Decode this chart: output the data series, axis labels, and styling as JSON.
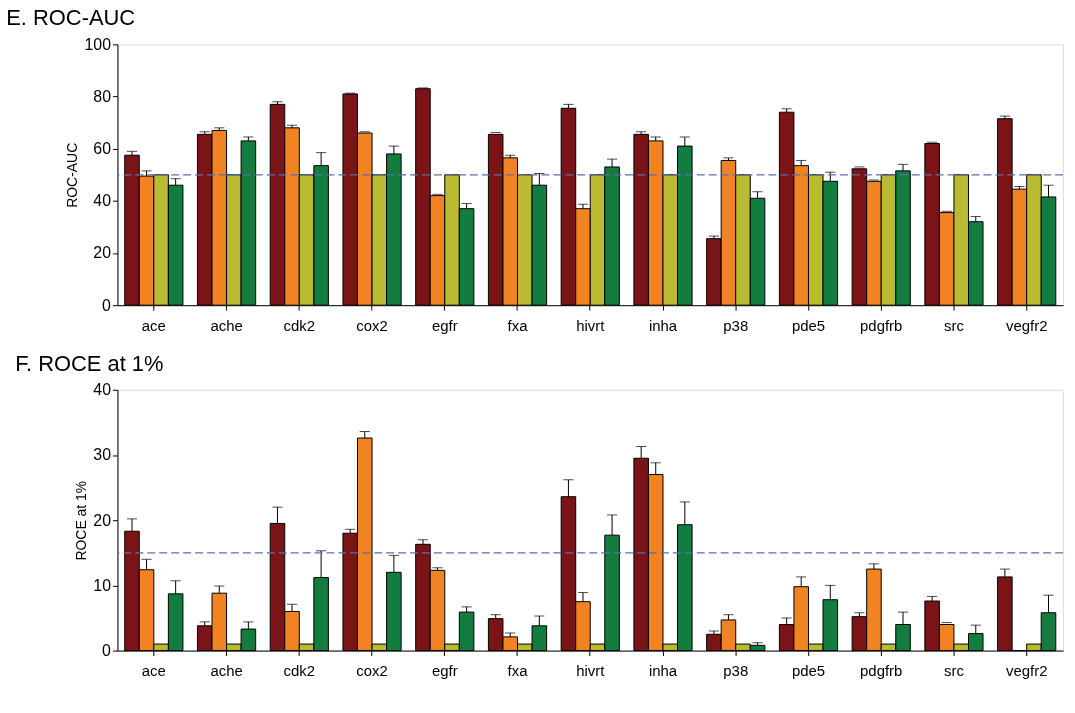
{
  "chart_data": [
    {
      "type": "bar",
      "title": "E.  ROC-AUC",
      "ylabel": "ROC-AUC",
      "categories": [
        "ace",
        "ache",
        "cdk2",
        "cox2",
        "egfr",
        "fxa",
        "hivrt",
        "inha",
        "p38",
        "pde5",
        "pdgfrb",
        "src",
        "vegfr2"
      ],
      "ylim": [
        0,
        100
      ],
      "yticks": [
        0,
        20,
        40,
        60,
        80,
        100
      ],
      "grid": false,
      "legend": false,
      "ref_lines": [
        {
          "axis": "y",
          "value": 50,
          "color": "#5a6fb0",
          "line_style": "dashed"
        }
      ],
      "series": [
        {
          "color": "#7b1416",
          "values": [
            57.5,
            65.5,
            77,
            81,
            83,
            65.5,
            75.5,
            65.5,
            25.5,
            74,
            52.3,
            62,
            71.5
          ],
          "errors": [
            [
              57.5,
              59
            ],
            [
              65.5,
              66.5
            ],
            [
              77,
              78
            ],
            [
              81,
              81.3
            ],
            [
              83,
              83.3
            ],
            [
              65.5,
              66.2
            ],
            [
              75.5,
              77
            ],
            [
              65.5,
              66.5
            ],
            [
              25.5,
              26.5
            ],
            [
              74,
              75.3
            ],
            [
              52.3,
              53
            ],
            [
              62,
              62.5
            ],
            [
              71.5,
              72.5
            ]
          ]
        },
        {
          "color": "#f28322",
          "values": [
            49.5,
            67,
            68,
            66,
            42,
            56.5,
            37,
            63,
            55.5,
            53.5,
            47.5,
            35.5,
            44.5
          ],
          "errors": [
            [
              49.5,
              51.5
            ],
            [
              67,
              68
            ],
            [
              68,
              69
            ],
            [
              66,
              66.5
            ],
            [
              42,
              42.5
            ],
            [
              56.5,
              57.5
            ],
            [
              37,
              38.7
            ],
            [
              63,
              64.5
            ],
            [
              55.5,
              56.5
            ],
            [
              53.5,
              55.5
            ],
            [
              47.5,
              48
            ],
            [
              35.5,
              36
            ],
            [
              44.5,
              45.5
            ]
          ]
        },
        {
          "color": "#bbbb33",
          "values": [
            50,
            50,
            50,
            50,
            50,
            50,
            50,
            50,
            50,
            50,
            50,
            50,
            50
          ]
        },
        {
          "color": "#137d3f",
          "values": [
            46,
            63,
            53.5,
            58,
            37,
            46,
            53,
            61,
            41,
            47.5,
            51.5,
            32,
            41.5
          ],
          "errors": [
            [
              46,
              48.5
            ],
            [
              63,
              64.5
            ],
            [
              53.5,
              58.5
            ],
            [
              58,
              61
            ],
            [
              37,
              39
            ],
            [
              46,
              50.5
            ],
            [
              53,
              56
            ],
            [
              61,
              64.5
            ],
            [
              41,
              43.5
            ],
            [
              47.5,
              51
            ],
            [
              51.5,
              54
            ],
            [
              32,
              34
            ],
            [
              41.5,
              46
            ]
          ]
        }
      ]
    },
    {
      "type": "bar",
      "title": "F.  ROCE at 1%",
      "ylabel": "ROCE at 1%",
      "categories": [
        "ace",
        "ache",
        "cdk2",
        "cox2",
        "egfr",
        "fxa",
        "hivrt",
        "inha",
        "p38",
        "pde5",
        "pdgfrb",
        "src",
        "vegfr2"
      ],
      "ylim": [
        0,
        40
      ],
      "yticks": [
        0,
        10,
        20,
        30,
        40
      ],
      "grid": false,
      "legend": false,
      "ref_lines": [
        {
          "axis": "y",
          "value": 15,
          "color": "#5a6fb0",
          "line_style": "dashed"
        }
      ],
      "series": [
        {
          "color": "#7b1416",
          "values": [
            18.3,
            3.8,
            19.5,
            18,
            16.3,
            4.9,
            23.6,
            29.5,
            2.5,
            4,
            5.2,
            7.6,
            11.3
          ],
          "errors": [
            [
              18.3,
              20.2
            ],
            [
              3.8,
              4.4
            ],
            [
              19.5,
              22
            ],
            [
              18,
              18.6
            ],
            [
              16.3,
              17
            ],
            [
              4.9,
              5.5
            ],
            [
              23.6,
              26.2
            ],
            [
              29.5,
              31.3
            ],
            [
              2.5,
              3
            ],
            [
              4,
              5
            ],
            [
              5.2,
              5.8
            ],
            [
              7.6,
              8.3
            ],
            [
              11.3,
              12.5
            ]
          ]
        },
        {
          "color": "#f28322",
          "values": [
            12.4,
            8.8,
            6,
            32.6,
            12.3,
            2.1,
            7.5,
            27,
            4.7,
            9.8,
            12.5,
            4,
            0
          ],
          "errors": [
            [
              12.4,
              14
            ],
            [
              8.8,
              9.9
            ],
            [
              6,
              7.1
            ],
            [
              32.6,
              33.6
            ],
            [
              12.3,
              12.7
            ],
            [
              2.1,
              2.7
            ],
            [
              7.5,
              8.9
            ],
            [
              27,
              28.8
            ],
            [
              4.7,
              5.5
            ],
            [
              9.8,
              11.3
            ],
            [
              12.5,
              13.3
            ],
            [
              4,
              4.3
            ],
            null
          ]
        },
        {
          "color": "#bbbb33",
          "values": [
            1,
            1,
            1,
            1,
            1,
            1,
            1,
            1,
            1,
            1,
            1,
            1,
            1
          ]
        },
        {
          "color": "#137d3f",
          "values": [
            8.7,
            3.3,
            11.2,
            12,
            5.9,
            3.8,
            17.7,
            19.3,
            0.8,
            7.8,
            4,
            2.6,
            5.8
          ],
          "errors": [
            [
              8.7,
              10.7
            ],
            [
              3.3,
              4.4
            ],
            [
              11.2,
              15.3
            ],
            [
              12,
              14.6
            ],
            [
              5.9,
              6.7
            ],
            [
              3.8,
              5.3
            ],
            [
              17.7,
              20.8
            ],
            [
              19.3,
              22.8
            ],
            [
              0.8,
              1.2
            ],
            [
              7.8,
              10
            ],
            [
              4,
              5.9
            ],
            [
              2.6,
              3.9
            ],
            [
              5.8,
              8.5
            ]
          ]
        }
      ]
    }
  ]
}
